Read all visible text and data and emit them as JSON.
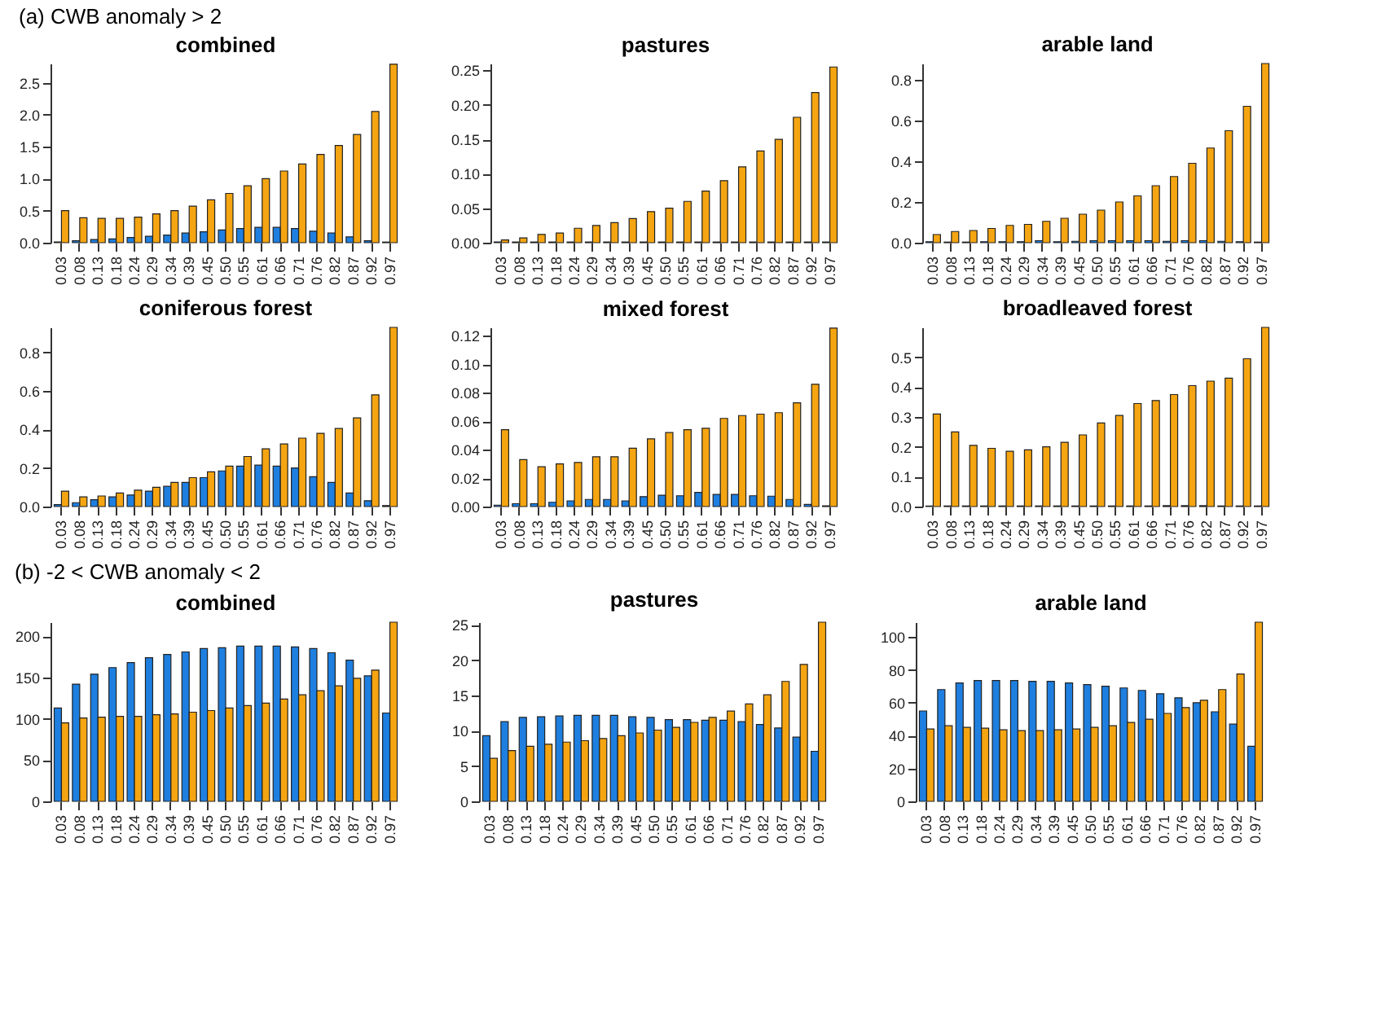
{
  "chart_data": [
    {
      "type": "bar",
      "title": "combined",
      "annotations": [
        "(a) CWB anomaly > 2"
      ],
      "categories": [
        "0.03",
        "0.08",
        "0.13",
        "0.18",
        "0.24",
        "0.29",
        "0.34",
        "0.39",
        "0.45",
        "0.50",
        "0.55",
        "0.61",
        "0.66",
        "0.71",
        "0.76",
        "0.82",
        "0.87",
        "0.92",
        "0.97"
      ],
      "ylim": [
        0,
        2.8
      ],
      "yticks": [
        {
          "value": 0,
          "label": "0.0"
        },
        0.5,
        {
          "value": 1,
          "label": "1.0"
        },
        1.5,
        {
          "value": 2,
          "label": "2.0"
        },
        2.5
      ],
      "series": [
        {
          "color": "#1e7fe0",
          "values": [
            0.01,
            0.03,
            0.05,
            0.06,
            0.08,
            0.1,
            0.12,
            0.15,
            0.17,
            0.2,
            0.22,
            0.24,
            0.24,
            0.22,
            0.18,
            0.15,
            0.09,
            0.03,
            0.01
          ]
        },
        {
          "color": "#f5a511",
          "values": [
            0.5,
            0.39,
            0.38,
            0.38,
            0.4,
            0.45,
            0.5,
            0.57,
            0.67,
            0.77,
            0.89,
            1.0,
            1.12,
            1.23,
            1.38,
            1.52,
            1.69,
            2.05,
            2.79
          ]
        }
      ]
    },
    {
      "type": "bar",
      "title": "pastures",
      "categories": [
        "0.03",
        "0.08",
        "0.13",
        "0.18",
        "0.24",
        "0.29",
        "0.34",
        "0.39",
        "0.45",
        "0.50",
        "0.55",
        "0.61",
        "0.66",
        "0.71",
        "0.76",
        "0.82",
        "0.87",
        "0.92",
        "0.97"
      ],
      "ylim": [
        0,
        0.26
      ],
      "yticks": [
        {
          "value": 0,
          "label": "0.00"
        },
        0.05,
        {
          "value": 0.1,
          "label": "0.10"
        },
        0.15,
        {
          "value": 0.2,
          "label": "0.20"
        },
        0.25
      ],
      "series": [
        {
          "color": "#1e7fe0",
          "values": [
            0.001,
            0.001,
            0.001,
            0.001,
            0.001,
            0.001,
            0.001,
            0.001,
            0.001,
            0.001,
            0.001,
            0.001,
            0.001,
            0.001,
            0.001,
            0.001,
            0.001,
            0.001,
            0.001
          ]
        },
        {
          "color": "#f5a511",
          "values": [
            0.004,
            0.007,
            0.012,
            0.014,
            0.021,
            0.025,
            0.029,
            0.035,
            0.045,
            0.05,
            0.06,
            0.075,
            0.09,
            0.11,
            0.133,
            0.15,
            0.182,
            0.218,
            0.255
          ]
        }
      ]
    },
    {
      "type": "bar",
      "title": "arable land",
      "categories": [
        "0.03",
        "0.08",
        "0.13",
        "0.18",
        "0.24",
        "0.29",
        "0.34",
        "0.39",
        "0.45",
        "0.50",
        "0.55",
        "0.61",
        "0.66",
        "0.71",
        "0.76",
        "0.82",
        "0.87",
        "0.92",
        "0.97"
      ],
      "ylim": [
        0,
        0.88
      ],
      "yticks": [
        {
          "value": 0,
          "label": "0.0"
        },
        0.2,
        0.4,
        0.6,
        0.8
      ],
      "series": [
        {
          "color": "#1e7fe0",
          "values": [
            0.005,
            0.003,
            0.003,
            0.005,
            0.005,
            0.005,
            0.01,
            0.005,
            0.007,
            0.01,
            0.01,
            0.01,
            0.01,
            0.007,
            0.01,
            0.01,
            0.007,
            0.005,
            0.003
          ]
        },
        {
          "color": "#f5a511",
          "values": [
            0.04,
            0.055,
            0.06,
            0.07,
            0.085,
            0.09,
            0.105,
            0.12,
            0.14,
            0.16,
            0.2,
            0.23,
            0.28,
            0.325,
            0.39,
            0.465,
            0.55,
            0.67,
            0.88
          ]
        }
      ]
    },
    {
      "type": "bar",
      "title": "coniferous forest",
      "categories": [
        "0.03",
        "0.08",
        "0.13",
        "0.18",
        "0.24",
        "0.29",
        "0.34",
        "0.39",
        "0.45",
        "0.50",
        "0.55",
        "0.61",
        "0.66",
        "0.71",
        "0.76",
        "0.82",
        "0.87",
        "0.92",
        "0.97"
      ],
      "ylim": [
        0,
        0.93
      ],
      "yticks": [
        {
          "value": 0,
          "label": "0.0"
        },
        0.2,
        0.4,
        0.6,
        0.8
      ],
      "series": [
        {
          "color": "#1e7fe0",
          "values": [
            0.01,
            0.02,
            0.035,
            0.05,
            0.06,
            0.08,
            0.105,
            0.125,
            0.15,
            0.185,
            0.21,
            0.215,
            0.21,
            0.2,
            0.155,
            0.125,
            0.07,
            0.03,
            0.005
          ]
        },
        {
          "color": "#f5a511",
          "values": [
            0.08,
            0.05,
            0.055,
            0.07,
            0.085,
            0.1,
            0.125,
            0.15,
            0.18,
            0.21,
            0.26,
            0.3,
            0.325,
            0.355,
            0.38,
            0.405,
            0.46,
            0.58,
            0.93
          ]
        }
      ]
    },
    {
      "type": "bar",
      "title": "mixed forest",
      "categories": [
        "0.03",
        "0.08",
        "0.13",
        "0.18",
        "0.24",
        "0.29",
        "0.34",
        "0.39",
        "0.45",
        "0.50",
        "0.55",
        "0.61",
        "0.66",
        "0.71",
        "0.76",
        "0.82",
        "0.87",
        "0.92",
        "0.97"
      ],
      "ylim": [
        0,
        0.126
      ],
      "yticks": [
        {
          "value": 0,
          "label": "0.00"
        },
        {
          "value": 0.02,
          "label": "0.02"
        },
        {
          "value": 0.04,
          "label": "0.04"
        },
        {
          "value": 0.06,
          "label": "0.06"
        },
        {
          "value": 0.08,
          "label": "0.08"
        },
        {
          "value": 0.1,
          "label": "0.10"
        },
        {
          "value": 0.12,
          "label": "0.12"
        }
      ],
      "series": [
        {
          "color": "#1e7fe0",
          "values": [
            0.001,
            0.002,
            0.002,
            0.003,
            0.004,
            0.005,
            0.005,
            0.004,
            0.007,
            0.008,
            0.0076,
            0.01,
            0.0085,
            0.0085,
            0.0076,
            0.0073,
            0.005,
            0.0015,
            0.0005
          ]
        },
        {
          "color": "#f5a511",
          "values": [
            0.054,
            0.033,
            0.028,
            0.03,
            0.031,
            0.035,
            0.035,
            0.041,
            0.0476,
            0.052,
            0.054,
            0.055,
            0.062,
            0.064,
            0.065,
            0.066,
            0.073,
            0.086,
            0.1255
          ]
        }
      ]
    },
    {
      "type": "bar",
      "title": "broadleaved forest",
      "categories": [
        "0.03",
        "0.08",
        "0.13",
        "0.18",
        "0.24",
        "0.29",
        "0.34",
        "0.39",
        "0.45",
        "0.50",
        "0.55",
        "0.61",
        "0.66",
        "0.71",
        "0.76",
        "0.82",
        "0.87",
        "0.92",
        "0.97"
      ],
      "ylim": [
        0,
        0.6
      ],
      "yticks": [
        {
          "value": 0,
          "label": "0.0"
        },
        0.1,
        0.2,
        0.3,
        0.4,
        0.5
      ],
      "series": [
        {
          "color": "#1e7fe0",
          "values": [
            0.002,
            0.002,
            0.002,
            0.002,
            0.002,
            0.002,
            0.002,
            0.002,
            0.002,
            0.002,
            0.002,
            0.002,
            0.002,
            0.003,
            0.003,
            0.003,
            0.002,
            0.002,
            0.002
          ]
        },
        {
          "color": "#f5a511",
          "values": [
            0.31,
            0.25,
            0.205,
            0.195,
            0.185,
            0.19,
            0.2,
            0.215,
            0.24,
            0.28,
            0.305,
            0.345,
            0.355,
            0.375,
            0.405,
            0.42,
            0.43,
            0.495,
            0.6
          ]
        }
      ]
    },
    {
      "type": "bar",
      "title": "combined",
      "annotations": [
        "(b) -2 < CWB anomaly < 2"
      ],
      "categories": [
        "0.03",
        "0.08",
        "0.13",
        "0.18",
        "0.24",
        "0.29",
        "0.34",
        "0.39",
        "0.45",
        "0.50",
        "0.55",
        "0.61",
        "0.66",
        "0.71",
        "0.76",
        "0.82",
        "0.87",
        "0.92",
        "0.97"
      ],
      "ylim": [
        0,
        217
      ],
      "yticks": [
        0,
        50,
        100,
        150,
        200
      ],
      "series": [
        {
          "color": "#1e7fe0",
          "values": [
            113,
            142,
            154,
            162,
            168,
            174,
            178,
            181,
            185,
            186,
            188,
            188,
            188,
            187,
            185,
            180,
            171,
            152,
            107
          ]
        },
        {
          "color": "#f5a511",
          "values": [
            95,
            101,
            102,
            103,
            103,
            105,
            106,
            108,
            110,
            113,
            116,
            119,
            124,
            129,
            134,
            140,
            149,
            159,
            217
          ]
        }
      ]
    },
    {
      "type": "bar",
      "title": "pastures",
      "categories": [
        "0.03",
        "0.08",
        "0.13",
        "0.18",
        "0.24",
        "0.29",
        "0.34",
        "0.39",
        "0.45",
        "0.50",
        "0.55",
        "0.61",
        "0.66",
        "0.71",
        "0.76",
        "0.82",
        "0.87",
        "0.92",
        "0.97"
      ],
      "ylim": [
        0,
        25.4
      ],
      "yticks": [
        0,
        5,
        10,
        15,
        20,
        25
      ],
      "series": [
        {
          "color": "#1e7fe0",
          "values": [
            9.3,
            11.3,
            11.9,
            12.0,
            12.1,
            12.2,
            12.2,
            12.2,
            12.0,
            11.9,
            11.6,
            11.6,
            11.5,
            11.5,
            11.3,
            10.9,
            10.4,
            9.1,
            7.1
          ]
        },
        {
          "color": "#f5a511",
          "values": [
            6.1,
            7.2,
            7.8,
            8.1,
            8.4,
            8.6,
            8.9,
            9.3,
            9.7,
            10.1,
            10.5,
            11.2,
            11.9,
            12.8,
            13.8,
            15.1,
            17.0,
            19.4,
            25.4
          ]
        }
      ]
    },
    {
      "type": "bar",
      "title": "arable land",
      "categories": [
        "0.03",
        "0.08",
        "0.13",
        "0.18",
        "0.24",
        "0.29",
        "0.34",
        "0.39",
        "0.45",
        "0.50",
        "0.55",
        "0.61",
        "0.66",
        "0.71",
        "0.76",
        "0.82",
        "0.87",
        "0.92",
        "0.97"
      ],
      "ylim": [
        0,
        109
      ],
      "yticks": [
        0,
        20,
        40,
        60,
        80,
        100
      ],
      "series": [
        {
          "color": "#1e7fe0",
          "values": [
            55,
            68,
            72,
            73.5,
            73.5,
            73.5,
            73,
            73,
            72,
            71,
            70,
            69,
            67.5,
            65.5,
            63,
            60,
            54.5,
            47,
            33.5
          ]
        },
        {
          "color": "#f5a511",
          "values": [
            44,
            46,
            45,
            44.5,
            43.5,
            43,
            43,
            43.5,
            44,
            45,
            46,
            48,
            50,
            53.5,
            57,
            61.5,
            68,
            77.5,
            109
          ]
        }
      ]
    }
  ]
}
